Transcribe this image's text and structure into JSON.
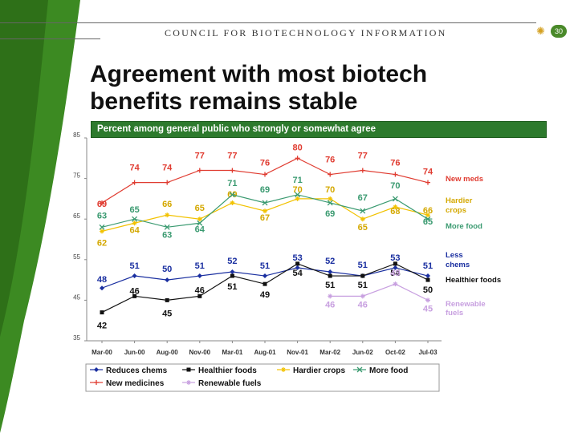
{
  "header": {
    "org_name": "COUNCIL FOR BIOTECHNOLOGY INFORMATION",
    "page_number": "30"
  },
  "title_line1": "Agreement with most biotech",
  "title_line2": "benefits remains stable",
  "colors": {
    "band": "#3c8a22",
    "subtitle_bg": "#2d7a2d"
  },
  "chart_data": {
    "type": "line",
    "title": "Percent among general public who strongly or somewhat agree",
    "categories": [
      "Mar-00",
      "Jun-00",
      "Aug-00",
      "Nov-00",
      "Mar-01",
      "Aug-01",
      "Nov-01",
      "Mar-02",
      "Jun-02",
      "Oct-02",
      "Jul-03"
    ],
    "ylim": [
      35,
      85
    ],
    "yticks": [
      35,
      45,
      55,
      65,
      75,
      85
    ],
    "series": [
      {
        "name": "New medicines",
        "legend": "New medicines",
        "end_label": "New meds",
        "color": "#e03c31",
        "marker": "plus",
        "values": [
          69,
          74,
          74,
          77,
          77,
          76,
          80,
          76,
          77,
          76,
          74
        ]
      },
      {
        "name": "Hardier crops",
        "legend": "Hardier crops",
        "end_label": "Hardier crops",
        "color": "#f2c200",
        "marker": "star",
        "values": [
          62,
          64,
          66,
          65,
          69,
          67,
          70,
          70,
          65,
          68,
          66
        ]
      },
      {
        "name": "More food",
        "legend": "More food",
        "end_label": "More food",
        "color": "#3a9a70",
        "marker": "x",
        "values": [
          63,
          65,
          63,
          64,
          71,
          69,
          71,
          69,
          67,
          70,
          65
        ]
      },
      {
        "name": "Reduces chems",
        "legend": "Reduces chems",
        "end_label": "Less chems",
        "color": "#1a2fa0",
        "marker": "diamond",
        "values": [
          48,
          51,
          50,
          51,
          52,
          51,
          53,
          52,
          51,
          53,
          51
        ]
      },
      {
        "name": "Healthier foods",
        "legend": "Healthier foods",
        "end_label": "Healthier foods",
        "color": "#111111",
        "marker": "square",
        "values": [
          42,
          46,
          45,
          46,
          51,
          49,
          54,
          51,
          51,
          54,
          50
        ]
      },
      {
        "name": "Renewable fuels",
        "legend": "Renewable fuels",
        "end_label": "Renewable fuels",
        "color": "#c8a0e0",
        "marker": "star",
        "values": [
          null,
          null,
          null,
          null,
          null,
          null,
          null,
          46,
          46,
          49,
          45
        ]
      }
    ],
    "legend_position": "bottom"
  }
}
